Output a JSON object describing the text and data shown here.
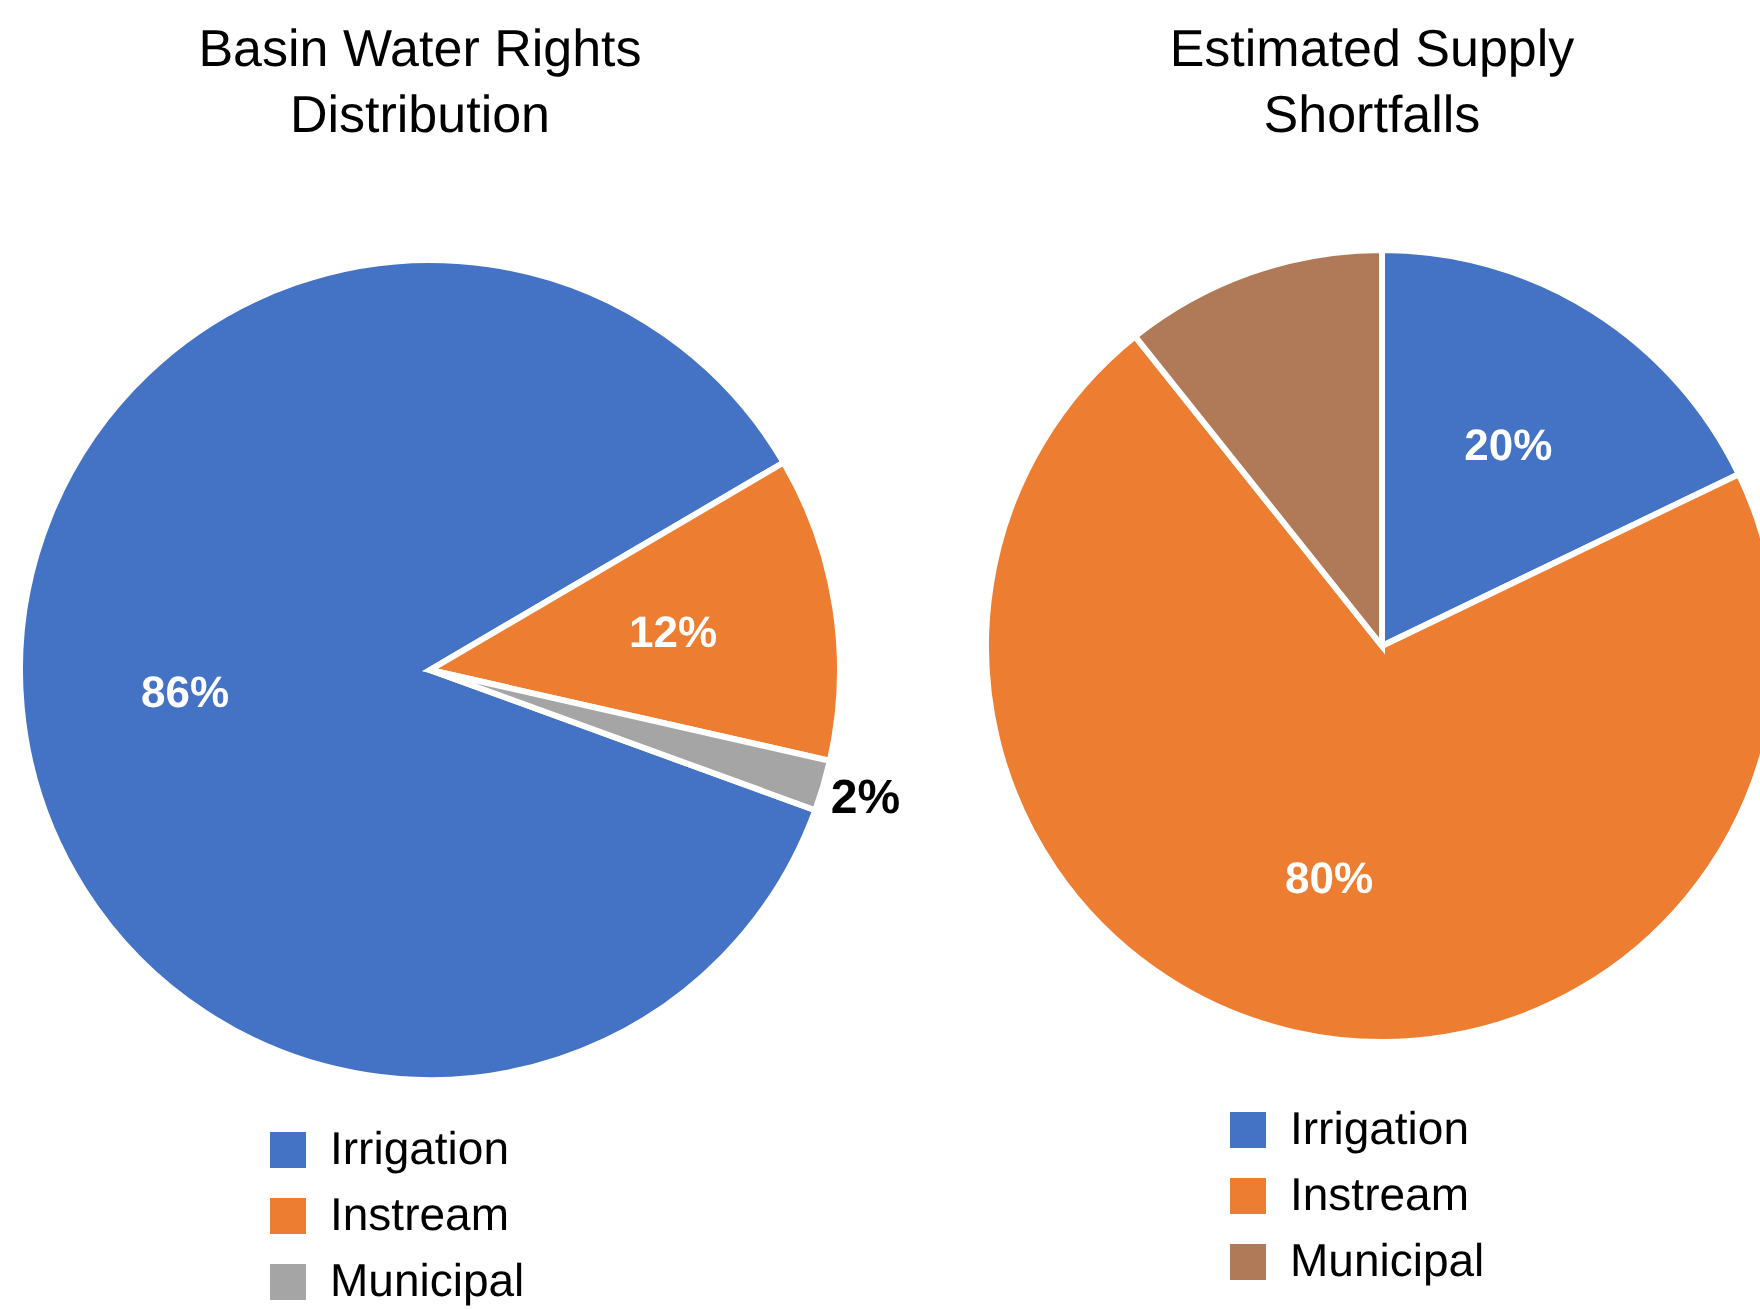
{
  "chart_data": [
    {
      "type": "pie",
      "title": "Basin Water Rights Distribution",
      "categories": [
        "Irrigation",
        "Instream",
        "Municipal"
      ],
      "values": [
        86,
        12,
        2
      ],
      "colors": [
        "#4472c4",
        "#ed7d31",
        "#a5a5a5"
      ],
      "value_labels": [
        "86%",
        "12%",
        "2%"
      ],
      "legend": "bottom"
    },
    {
      "type": "pie",
      "title": "Estimated Supply Shortfalls",
      "categories": [
        "Irrigation",
        "Instream",
        "Municipal"
      ],
      "values": [
        20,
        80,
        12
      ],
      "colors": [
        "#4472c4",
        "#ed7d31",
        "#b07a58"
      ],
      "value_labels": [
        "20%",
        "80%",
        null
      ],
      "legend": "bottom"
    }
  ]
}
